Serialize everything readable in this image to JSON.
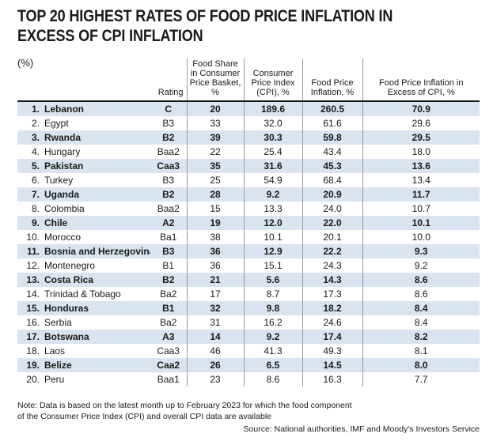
{
  "header": {
    "title_line1": "TOP 20 HIGHEST RATES OF FOOD PRICE INFLATION IN",
    "title_line2": "EXCESS OF CPI INFLATION",
    "unit": "(%)"
  },
  "columns": {
    "rating": "Rating",
    "food_share": "Food Share in Consumer Price Basket, %",
    "cpi": "Consumer Price Index (CPI), %",
    "food_inflation": "Food Price Inflation, %",
    "excess": "Food Price Inflation in Excess of CPI, %"
  },
  "chart_data": {
    "type": "table",
    "title": "TOP 20 HIGHEST RATES OF FOOD PRICE INFLATION IN EXCESS OF CPI INFLATION",
    "rows": [
      {
        "rank": "1.",
        "country": "Lebanon",
        "rating": "C",
        "food_share": "20",
        "cpi": "189.6",
        "food_inflation": "260.5",
        "excess": "70.9"
      },
      {
        "rank": "2.",
        "country": "Egypt",
        "rating": "B3",
        "food_share": "33",
        "cpi": "32.0",
        "food_inflation": "61.6",
        "excess": "29.6"
      },
      {
        "rank": "3.",
        "country": "Rwanda",
        "rating": "B2",
        "food_share": "39",
        "cpi": "30.3",
        "food_inflation": "59.8",
        "excess": "29.5"
      },
      {
        "rank": "4.",
        "country": "Hungary",
        "rating": "Baa2",
        "food_share": "22",
        "cpi": "25.4",
        "food_inflation": "43.4",
        "excess": "18.0"
      },
      {
        "rank": "5.",
        "country": "Pakistan",
        "rating": "Caa3",
        "food_share": "35",
        "cpi": "31.6",
        "food_inflation": "45.3",
        "excess": "13.6"
      },
      {
        "rank": "6.",
        "country": "Turkey",
        "rating": "B3",
        "food_share": "25",
        "cpi": "54.9",
        "food_inflation": "68.4",
        "excess": "13.4"
      },
      {
        "rank": "7.",
        "country": "Uganda",
        "rating": "B2",
        "food_share": "28",
        "cpi": "9.2",
        "food_inflation": "20.9",
        "excess": "11.7"
      },
      {
        "rank": "8.",
        "country": "Colombia",
        "rating": "Baa2",
        "food_share": "15",
        "cpi": "13.3",
        "food_inflation": "24.0",
        "excess": "10.7"
      },
      {
        "rank": "9.",
        "country": "Chile",
        "rating": "A2",
        "food_share": "19",
        "cpi": "12.0",
        "food_inflation": "22.0",
        "excess": "10.1"
      },
      {
        "rank": "10.",
        "country": "Morocco",
        "rating": "Ba1",
        "food_share": "38",
        "cpi": "10.1",
        "food_inflation": "20.1",
        "excess": "10.0"
      },
      {
        "rank": "11.",
        "country": "Bosnia and Herzegovina",
        "rating": "B3",
        "food_share": "36",
        "cpi": "12.9",
        "food_inflation": "22.2",
        "excess": "9.3"
      },
      {
        "rank": "12.",
        "country": "Montenegro",
        "rating": "B1",
        "food_share": "36",
        "cpi": "15.1",
        "food_inflation": "24.3",
        "excess": "9.2"
      },
      {
        "rank": "13.",
        "country": "Costa Rica",
        "rating": "B2",
        "food_share": "21",
        "cpi": "5.6",
        "food_inflation": "14.3",
        "excess": "8.6"
      },
      {
        "rank": "14.",
        "country": "Trinidad & Tobago",
        "rating": "Ba2",
        "food_share": "17",
        "cpi": "8.7",
        "food_inflation": "17.3",
        "excess": "8.6"
      },
      {
        "rank": "15.",
        "country": "Honduras",
        "rating": "B1",
        "food_share": "32",
        "cpi": "9.8",
        "food_inflation": "18.2",
        "excess": "8.4"
      },
      {
        "rank": "16.",
        "country": "Serbia",
        "rating": "Ba2",
        "food_share": "31",
        "cpi": "16.2",
        "food_inflation": "24.6",
        "excess": "8.4"
      },
      {
        "rank": "17.",
        "country": "Botswana",
        "rating": "A3",
        "food_share": "14",
        "cpi": "9.2",
        "food_inflation": "17.4",
        "excess": "8.2"
      },
      {
        "rank": "18.",
        "country": "Laos",
        "rating": "Caa3",
        "food_share": "46",
        "cpi": "41.3",
        "food_inflation": "49.3",
        "excess": "8.1"
      },
      {
        "rank": "19.",
        "country": "Belize",
        "rating": "Caa2",
        "food_share": "26",
        "cpi": "6.5",
        "food_inflation": "14.5",
        "excess": "8.0"
      },
      {
        "rank": "20.",
        "country": "Peru",
        "rating": "Baa1",
        "food_share": "23",
        "cpi": "8.6",
        "food_inflation": "16.3",
        "excess": "7.7"
      }
    ]
  },
  "colors": {
    "row_shade": "#d9e4f0",
    "text": "#1a1a1a"
  },
  "footer": {
    "note_line1": "Note: Data is based on the latest month up to February 2023 for which the food component",
    "note_line2": "of the Consumer Price Index (CPI) and overall CPI data are available",
    "source": "Source: National authorities, IMF and Moody's Investors Service"
  }
}
